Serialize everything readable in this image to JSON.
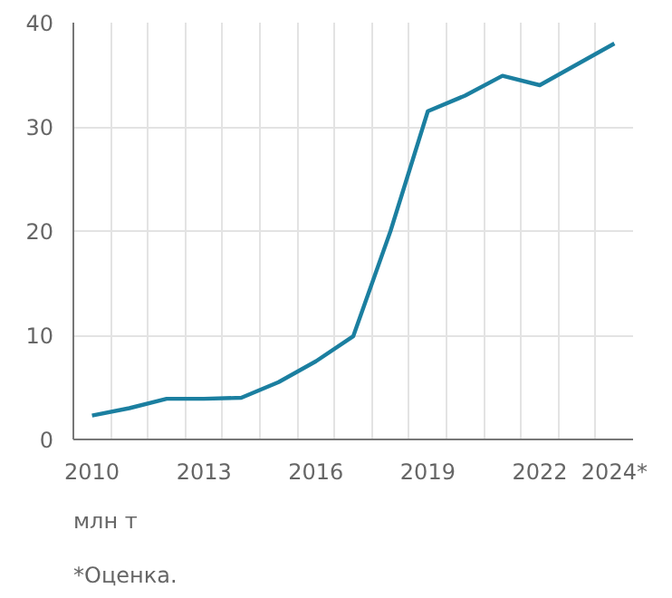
{
  "chart_data": {
    "type": "line",
    "annotations": [
      "млн т",
      "*Оценка."
    ],
    "x": [
      2010,
      2011,
      2012,
      2013,
      2014,
      2015,
      2016,
      2017,
      2018,
      2019,
      2020,
      2021,
      2022,
      2023,
      2024
    ],
    "series": [
      {
        "color": "#1b7fa0",
        "values": [
          2.3,
          3.0,
          3.9,
          3.9,
          4.0,
          5.5,
          7.5,
          9.9,
          20,
          31.5,
          33,
          34.9,
          34,
          36,
          38
        ]
      }
    ],
    "xlim": [
      2009.5,
      2024.5
    ],
    "xticks": [
      {
        "value": 2010,
        "label": "2010"
      },
      {
        "value": 2013,
        "label": "2013"
      },
      {
        "value": 2016,
        "label": "2016"
      },
      {
        "value": 2019,
        "label": "2019"
      },
      {
        "value": 2022,
        "label": "2022"
      },
      {
        "value": 2024,
        "label": "2024*"
      },
      {
        "value": 2010.5,
        "label": null
      },
      {
        "value": 2011.5,
        "label": null
      },
      {
        "value": 2012.5,
        "label": null
      },
      {
        "value": 2013.5,
        "label": null
      },
      {
        "value": 2014.5,
        "label": null
      },
      {
        "value": 2015.5,
        "label": null
      },
      {
        "value": 2016.5,
        "label": null
      },
      {
        "value": 2017.5,
        "label": null
      },
      {
        "value": 2018.5,
        "label": null
      },
      {
        "value": 2019.5,
        "label": null
      },
      {
        "value": 2020.5,
        "label": null
      },
      {
        "value": 2021.5,
        "label": null
      },
      {
        "value": 2022.5,
        "label": null
      },
      {
        "value": 2023.5,
        "label": null
      }
    ],
    "ylim": [
      0,
      40
    ],
    "yticks": [
      0,
      10,
      20,
      30,
      40
    ],
    "grid": true,
    "marker": "none",
    "line_style": "solid"
  }
}
